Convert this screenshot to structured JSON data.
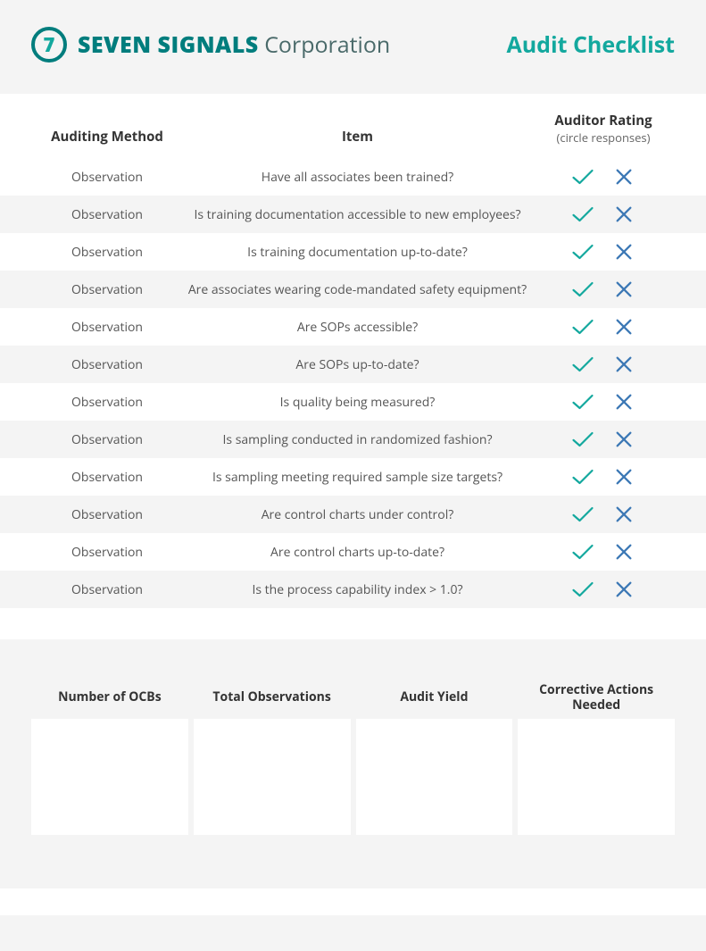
{
  "header": {
    "logo_text": "7",
    "brand_bold": "SEVEN SIGNALS",
    "brand_light": "Corporation",
    "page_title": "Audit Checklist"
  },
  "colors": {
    "teal_dark": "#007d7d",
    "teal_light": "#13a89e",
    "check": "#13a89e",
    "cross": "#3c78b5",
    "row_alt": "#f4f4f4",
    "text": "#555555"
  },
  "table": {
    "headers": {
      "method": "Auditing Method",
      "item": "Item",
      "rating": "Auditor Rating",
      "rating_sub": "(circle responses)"
    },
    "rows": [
      {
        "method": "Observation",
        "item": "Have all associates been trained?"
      },
      {
        "method": "Observation",
        "item": "Is training documentation accessible to new employees?"
      },
      {
        "method": "Observation",
        "item": "Is training documentation up-to-date?"
      },
      {
        "method": "Observation",
        "item": "Are associates wearing code-mandated safety equipment?"
      },
      {
        "method": "Observation",
        "item": "Are SOPs accessible?"
      },
      {
        "method": "Observation",
        "item": "Are SOPs up-to-date?"
      },
      {
        "method": "Observation",
        "item": "Is quality being measured?"
      },
      {
        "method": "Observation",
        "item": "Is sampling conducted in randomized fashion?"
      },
      {
        "method": "Observation",
        "item": "Is sampling meeting required sample size targets?"
      },
      {
        "method": "Observation",
        "item": "Are control charts under control?"
      },
      {
        "method": "Observation",
        "item": "Are control charts up-to-date?"
      },
      {
        "method": "Observation",
        "item": "Is the process capability index > 1.0?"
      }
    ]
  },
  "summary": {
    "cols": [
      "Number of OCBs",
      "Total Observations",
      "Audit Yield",
      "Corrective Actions Needed"
    ]
  }
}
